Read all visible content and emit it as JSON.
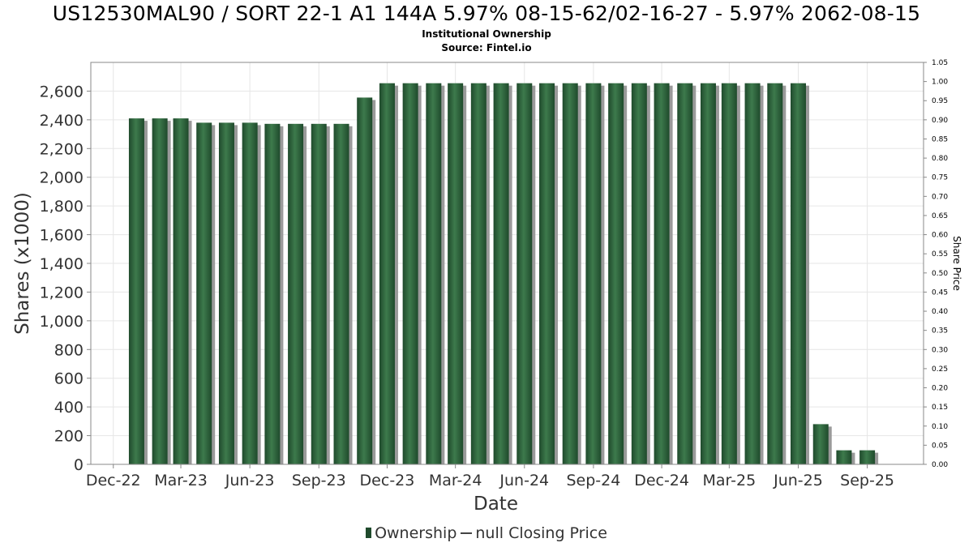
{
  "header": {
    "title": "US12530MAL90 / SORT 22-1 A1 144A 5.97% 08-15-62/02-16-27 - 5.97% 2062-08-15",
    "subtitle1": "Institutional Ownership",
    "subtitle2": "Source: Fintel.io"
  },
  "legend": {
    "ownership_label": "Ownership",
    "price_label": "null Closing Price"
  },
  "colors": {
    "bar": "#1f4a2c",
    "bar_highlight": "#3d7a4c",
    "bar_shadow": "#9a9a9a",
    "plot_background": "#ffffff",
    "grid": "#e6e6e6"
  },
  "chart_data": {
    "type": "bar",
    "title": "US12530MAL90 / SORT 22-1 A1 144A 5.97% 08-15-62/02-16-27 - 5.97% 2062-08-15",
    "xlabel": "Date",
    "ylabel": "Shares (x1000)",
    "y2label": "Share Price",
    "ylim": [
      0,
      2800
    ],
    "y2lim": [
      0,
      1.05
    ],
    "yticks": [
      0,
      200,
      400,
      600,
      800,
      1000,
      1200,
      1400,
      1600,
      1800,
      2000,
      2200,
      2400,
      2600
    ],
    "ytick_labels": [
      "0",
      "200",
      "400",
      "600",
      "800",
      "1,000",
      "1,200",
      "1,400",
      "1,600",
      "1,800",
      "2,000",
      "2,200",
      "2,400",
      "2,600"
    ],
    "y2ticks": [
      "0.00",
      "0.05",
      "0.10",
      "0.15",
      "0.20",
      "0.25",
      "0.30",
      "0.35",
      "0.40",
      "0.45",
      "0.50",
      "0.55",
      "0.60",
      "0.65",
      "0.70",
      "0.75",
      "0.80",
      "0.85",
      "0.90",
      "0.95",
      "1.00",
      "1.05"
    ],
    "xlim": [
      "2022-11-01",
      "2025-11-15"
    ],
    "xticks": [
      {
        "date": "2022-12-01",
        "label": "Dec-22"
      },
      {
        "date": "2023-03-01",
        "label": "Mar-23"
      },
      {
        "date": "2023-06-01",
        "label": "Jun-23"
      },
      {
        "date": "2023-09-01",
        "label": "Sep-23"
      },
      {
        "date": "2023-12-01",
        "label": "Dec-23"
      },
      {
        "date": "2024-03-01",
        "label": "Mar-24"
      },
      {
        "date": "2024-06-01",
        "label": "Jun-24"
      },
      {
        "date": "2024-09-01",
        "label": "Sep-24"
      },
      {
        "date": "2024-12-01",
        "label": "Dec-24"
      },
      {
        "date": "2025-03-01",
        "label": "Mar-25"
      },
      {
        "date": "2025-06-01",
        "label": "Jun-25"
      },
      {
        "date": "2025-09-01",
        "label": "Sep-25"
      }
    ],
    "grid": true,
    "legend_position": "bottom",
    "series": [
      {
        "name": "Ownership",
        "dates": [
          "2023-01-01",
          "2023-02-01",
          "2023-03-01",
          "2023-04-01",
          "2023-05-01",
          "2023-06-01",
          "2023-07-01",
          "2023-08-01",
          "2023-09-01",
          "2023-10-01",
          "2023-11-01",
          "2023-12-01",
          "2024-01-01",
          "2024-02-01",
          "2024-03-01",
          "2024-04-01",
          "2024-05-01",
          "2024-06-01",
          "2024-07-01",
          "2024-08-01",
          "2024-09-01",
          "2024-10-01",
          "2024-11-01",
          "2024-12-01",
          "2025-01-01",
          "2025-02-01",
          "2025-03-01",
          "2025-04-01",
          "2025-05-01",
          "2025-06-01",
          "2025-07-01",
          "2025-08-01",
          "2025-09-01"
        ],
        "values": [
          2410,
          2410,
          2410,
          2380,
          2380,
          2380,
          2372,
          2372,
          2372,
          2372,
          2555,
          2655,
          2655,
          2655,
          2655,
          2655,
          2655,
          2655,
          2655,
          2655,
          2655,
          2655,
          2655,
          2655,
          2655,
          2655,
          2655,
          2655,
          2655,
          2655,
          280,
          98,
          98
        ]
      }
    ]
  }
}
